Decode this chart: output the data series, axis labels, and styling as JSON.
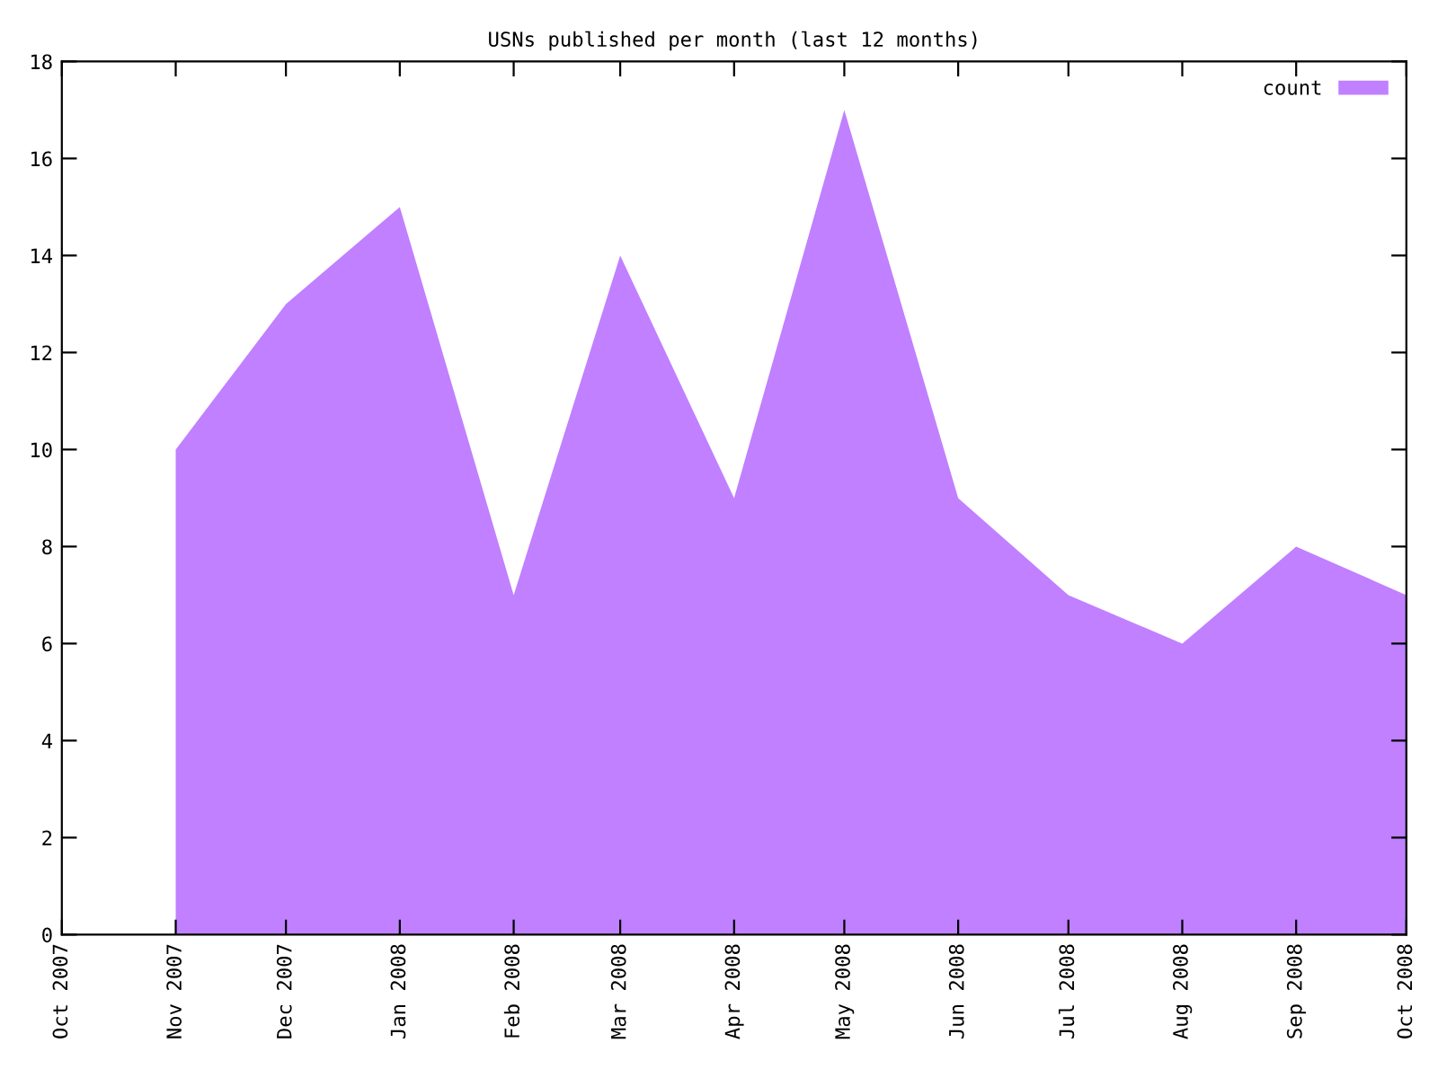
{
  "chart_data": {
    "type": "area",
    "title": "USNs published per month (last 12 months)",
    "x": [
      "2007-11",
      "2007-12",
      "2008-01",
      "2008-02",
      "2008-03",
      "2008-04",
      "2008-05",
      "2008-06",
      "2008-07",
      "2008-08",
      "2008-09",
      "2008-10"
    ],
    "series": [
      {
        "name": "count",
        "color": "#c080ff",
        "values": [
          10,
          13,
          15,
          7,
          14,
          9,
          17,
          9,
          7,
          6,
          8,
          7
        ]
      }
    ],
    "xlim": [
      "2007-10",
      "2008-10"
    ],
    "xticks": [
      {
        "value": "2007-10",
        "label": "Oct 2007"
      },
      {
        "value": "2007-11",
        "label": "Nov 2007"
      },
      {
        "value": "2007-12",
        "label": "Dec 2007"
      },
      {
        "value": "2008-01",
        "label": "Jan 2008"
      },
      {
        "value": "2008-02",
        "label": "Feb 2008"
      },
      {
        "value": "2008-03",
        "label": "Mar 2008"
      },
      {
        "value": "2008-04",
        "label": "Apr 2008"
      },
      {
        "value": "2008-05",
        "label": "May 2008"
      },
      {
        "value": "2008-06",
        "label": "Jun 2008"
      },
      {
        "value": "2008-07",
        "label": "Jul 2008"
      },
      {
        "value": "2008-08",
        "label": "Aug 2008"
      },
      {
        "value": "2008-09",
        "label": "Sep 2008"
      },
      {
        "value": "2008-10",
        "label": "Oct 2008"
      }
    ],
    "ylim": [
      0,
      18
    ],
    "yticks": [
      0,
      2,
      4,
      6,
      8,
      10,
      12,
      14,
      16,
      18
    ],
    "legend": "top right",
    "grid": false
  }
}
